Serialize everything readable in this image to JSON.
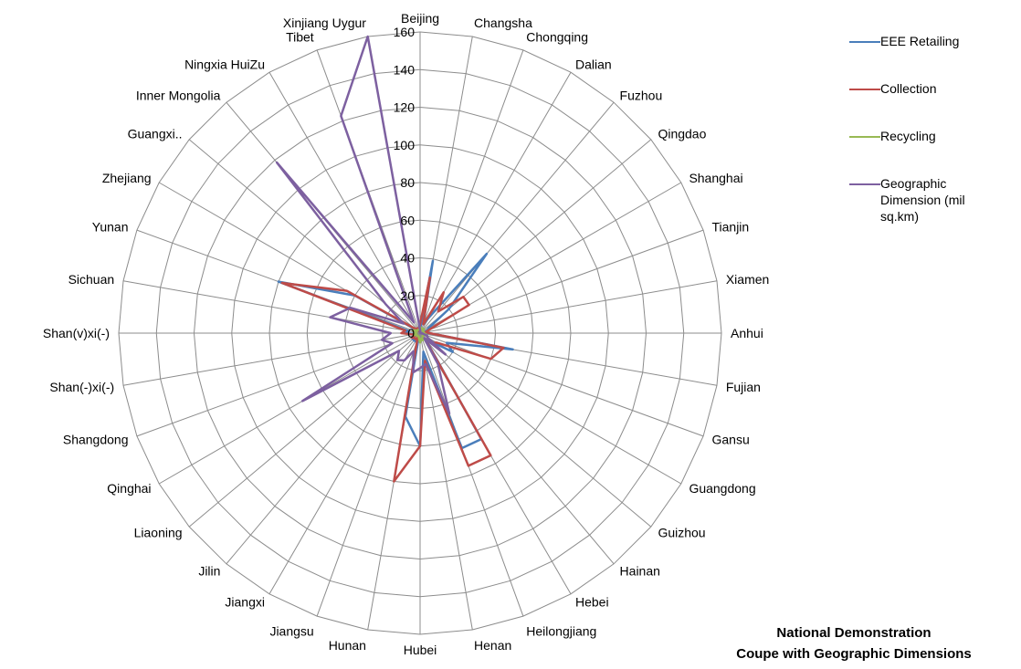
{
  "chart_data": {
    "type": "radar",
    "title": "National Demonstration\nCoupe with  Geographic Dimensions",
    "title_lines": [
      "National Demonstration",
      "Coupe with  Geographic Dimensions"
    ],
    "categories": [
      "Beijing",
      "Changsha",
      "Chongqing",
      "Dalian",
      "Fuzhou",
      "Qingdao",
      "Shanghai",
      "Tianjin",
      "Xiamen",
      "Anhui",
      "Fujian",
      "Gansu",
      "Guangdong",
      "Guizhou",
      "Hainan",
      "Hebei",
      "Heilongjiang",
      "Henan",
      "Hubei",
      "Hunan",
      "Jiangsu",
      "Jiangxi",
      "Jilin",
      "Liaoning",
      "Qinghai",
      "Shangdong",
      "Shan(-)xi(-)",
      "Shan(v)xi(-)",
      "Sichuan",
      "Yunan",
      "Zhejiang",
      "Guangxi..",
      "Inner Mongolia",
      "Ningxia HuiZu",
      "Tibet",
      "Xinjiang Uygur"
    ],
    "rlim": [
      0,
      160
    ],
    "rticks": [
      "0",
      "20",
      "40",
      "60",
      "80",
      "100",
      "120",
      "140",
      "160"
    ],
    "grid": true,
    "legend_position": "right",
    "series": [
      {
        "name": "EEE Retailing",
        "color": "#4a7ebb",
        "values": [
          2,
          39,
          5,
          10,
          55,
          20,
          5,
          4,
          2,
          5,
          50,
          15,
          20,
          6,
          5,
          65,
          65,
          10,
          60,
          45,
          2,
          5,
          5,
          5,
          5,
          2,
          3,
          8,
          6,
          80,
          40,
          3,
          2,
          2,
          1,
          2
        ]
      },
      {
        "name": "Collection",
        "color": "#be4b48",
        "values": [
          5,
          30,
          5,
          25,
          15,
          30,
          30,
          5,
          3,
          5,
          45,
          40,
          10,
          8,
          4,
          75,
          75,
          15,
          60,
          80,
          5,
          3,
          4,
          4,
          5,
          2,
          4,
          10,
          8,
          78,
          45,
          4,
          3,
          3,
          1,
          2
        ]
      },
      {
        "name": "Recycling",
        "color": "#98b954",
        "values": [
          2,
          3,
          2,
          2,
          3,
          2,
          2,
          2,
          2,
          2,
          3,
          3,
          2,
          2,
          2,
          3,
          4,
          3,
          5,
          3,
          2,
          2,
          2,
          2,
          2,
          3,
          3,
          2,
          2,
          4,
          3,
          2,
          2,
          2,
          2,
          2
        ]
      },
      {
        "name": "Geographic Dimension (mil sq.km)",
        "color": "#7d60a0",
        "values": [
          1.6,
          0.2,
          0.1,
          0.1,
          0.1,
          0.1,
          0.1,
          0.1,
          0.1,
          0.1,
          1.4,
          4.0,
          4.5,
          17.6,
          3.5,
          18.9,
          45.4,
          16.7,
          18.6,
          21.2,
          10.2,
          16.7,
          18.7,
          14.6,
          72.1,
          15.7,
          20.6,
          15.6,
          48.5,
          39.4,
          10.1,
          23.7,
          118.3,
          6.6,
          122.8,
          166.5
        ]
      }
    ]
  }
}
